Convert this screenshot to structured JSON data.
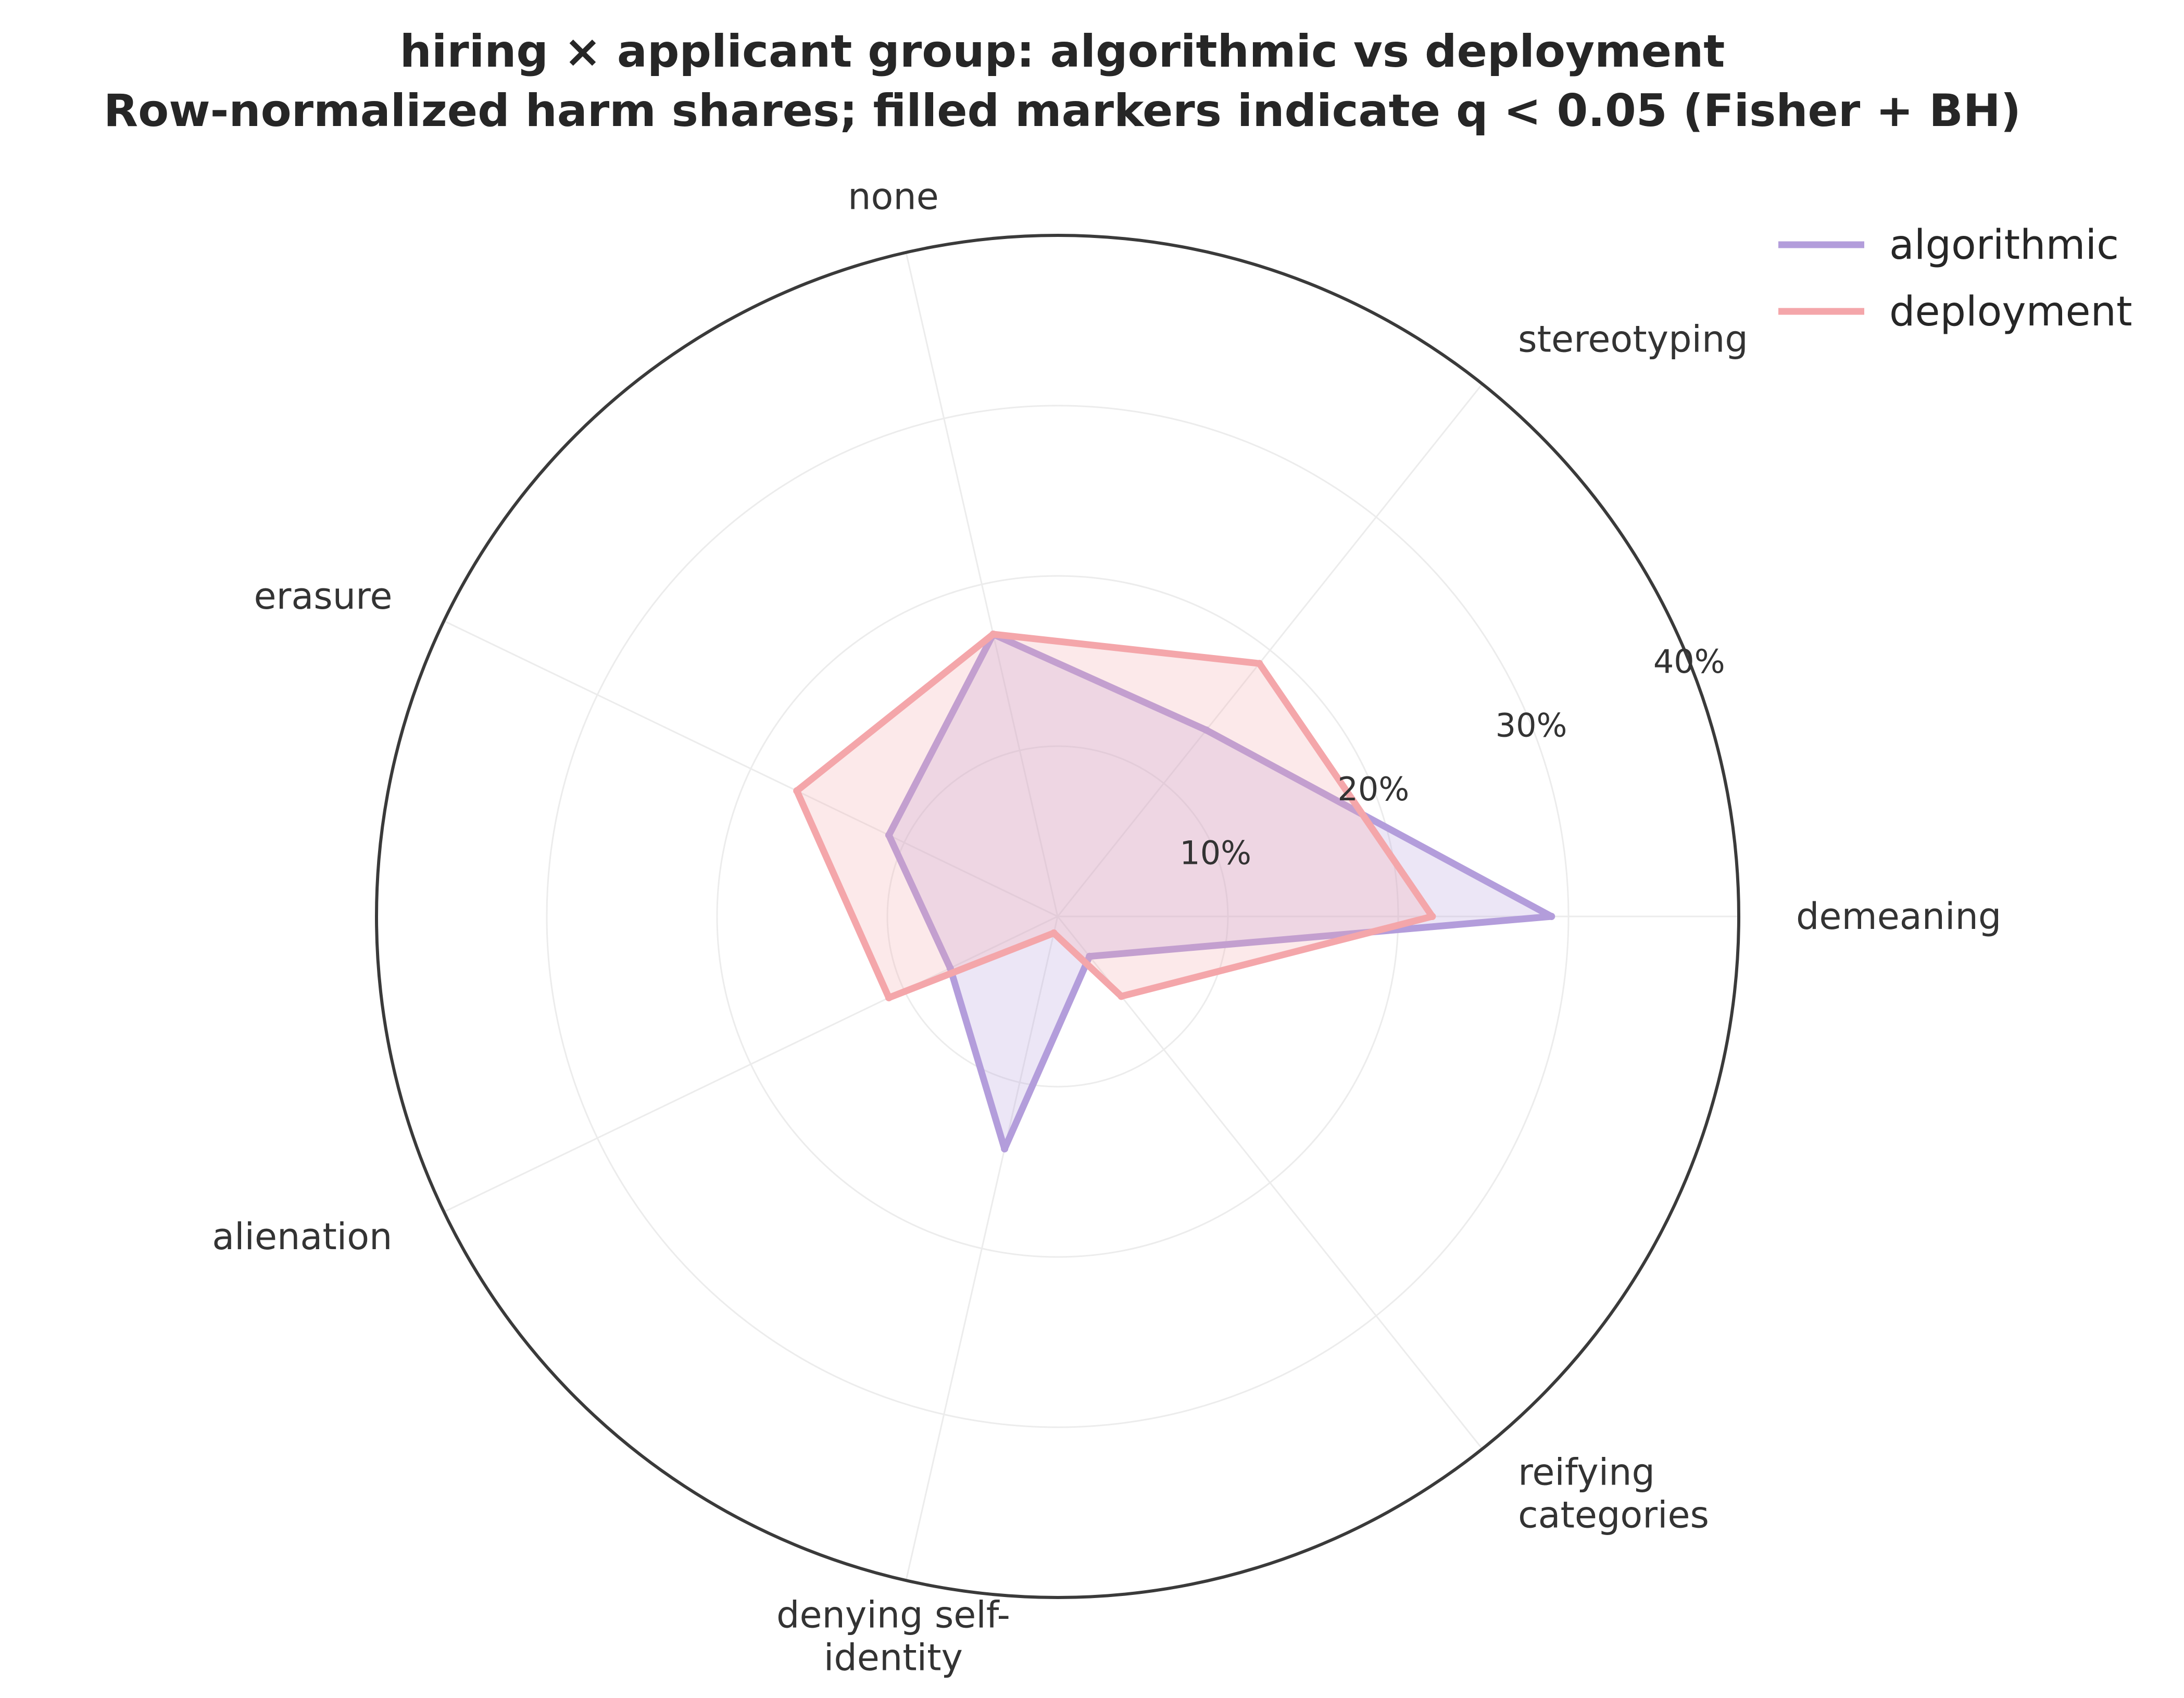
{
  "chart_data": {
    "type": "radar",
    "title": "hiring × applicant group: algorithmic vs deployment",
    "subtitle": "Row-normalized harm shares; filled markers indicate q < 0.05 (Fisher + BH)",
    "categories": [
      "demeaning",
      "stereotyping",
      "none",
      "erasure",
      "alienation",
      "denying self-identity",
      "reifying categories"
    ],
    "category_display": [
      [
        "demeaning"
      ],
      [
        "stereotyping"
      ],
      [
        "none"
      ],
      [
        "erasure"
      ],
      [
        "alienation"
      ],
      [
        "denying self-",
        "identity"
      ],
      [
        "reifying",
        "categories"
      ]
    ],
    "r_ticks": [
      10,
      20,
      30,
      40
    ],
    "r_tick_labels": [
      "10%",
      "20%",
      "30%",
      "40%"
    ],
    "r_max": 40,
    "grid": true,
    "legend_position": "top-right",
    "series": [
      {
        "name": "algorithmic",
        "color": "#b39ddb",
        "values": [
          29,
          14,
          17,
          11,
          7,
          14,
          3
        ]
      },
      {
        "name": "deployment",
        "color": "#f4a6aa",
        "values": [
          22,
          19,
          17,
          17,
          11,
          1,
          6
        ]
      }
    ]
  }
}
